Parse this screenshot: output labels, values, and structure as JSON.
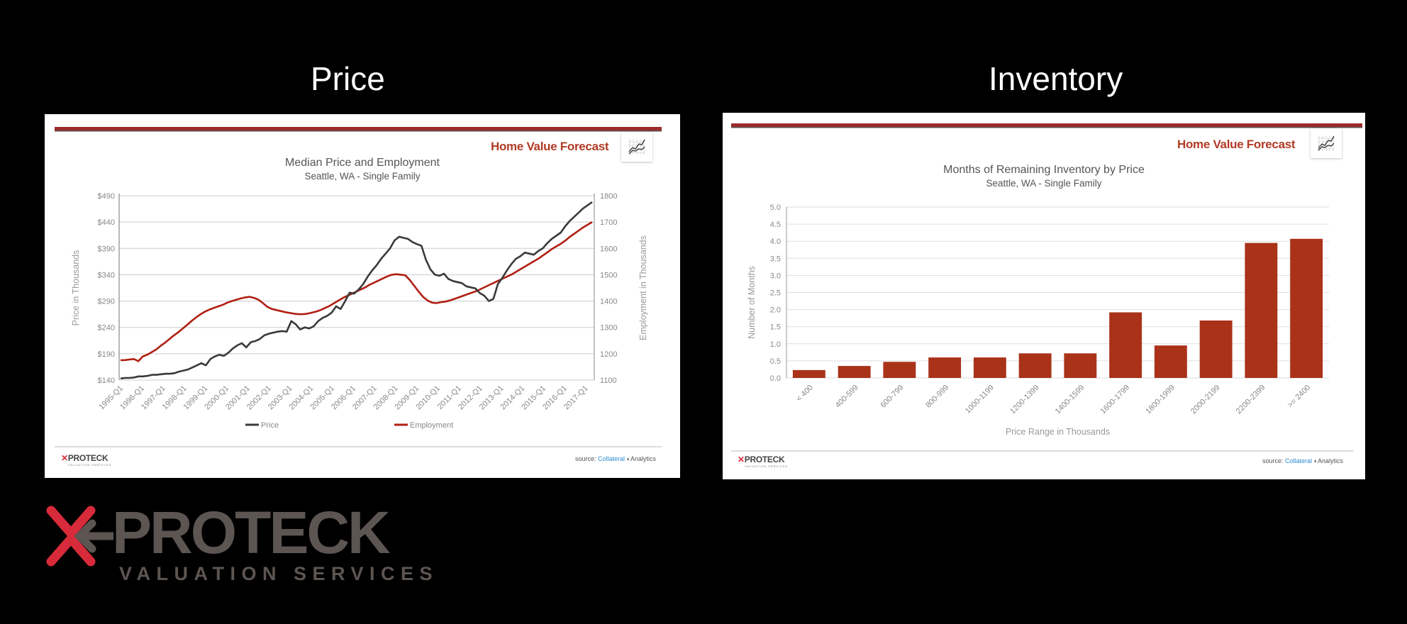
{
  "slide": {
    "left_title": "Price",
    "right_title": "Inventory"
  },
  "brand": {
    "forecast_label": "Home Value Forecast",
    "forecast_icon": "line-chart-icon",
    "source_prefix": "source:",
    "source_name_1": "Collateral",
    "source_name_2": "Analytics",
    "mini_logo": "PROTECK",
    "mini_logo_sub": "VALUATION SERVICES",
    "big_logo": "PROTECK",
    "big_logo_sub": "VALUATION SERVICES",
    "accent_color": "#b23a26",
    "logo_red": "#d72a3a",
    "logo_gray": "#5c5552"
  },
  "chart_data": [
    {
      "type": "line",
      "title": "Median Price and Employment",
      "subtitle": "Seattle, WA - Single Family",
      "xlabel": "",
      "ylabel": "Price in Thousands",
      "ylabel_right": "Employment in Thousands",
      "ylim": [
        140,
        490
      ],
      "ylim_right": [
        1100,
        1800
      ],
      "yticks": [
        "$140",
        "$190",
        "$240",
        "$290",
        "$340",
        "$390",
        "$440",
        "$490"
      ],
      "yticks_right": [
        "1100",
        "1200",
        "1300",
        "1400",
        "1500",
        "1600",
        "1700",
        "1800"
      ],
      "categories": [
        "1995-Q1",
        "1996-Q1",
        "1997-Q1",
        "1998-Q1",
        "1999-Q1",
        "2000-Q1",
        "2001-Q1",
        "2002-Q1",
        "2003-Q1",
        "2004-Q1",
        "2005-Q1",
        "2006-Q1",
        "2007-Q1",
        "2008-Q1",
        "2009-Q1",
        "2010-Q1",
        "2011-Q1",
        "2012-Q1",
        "2013-Q1",
        "2014-Q1",
        "2015-Q1",
        "2016-Q1",
        "2017-Q1"
      ],
      "grid": true,
      "legend_position": "bottom",
      "series": [
        {
          "name": "Price",
          "axis": "left",
          "color": "#3a3a3a",
          "values": [
            143,
            144,
            144,
            145,
            147,
            147,
            148,
            150,
            150,
            151,
            152,
            152,
            153,
            156,
            158,
            160,
            164,
            168,
            172,
            168,
            180,
            185,
            188,
            186,
            192,
            200,
            206,
            210,
            202,
            212,
            214,
            218,
            225,
            228,
            230,
            232,
            233,
            232,
            252,
            246,
            236,
            240,
            238,
            242,
            252,
            258,
            262,
            268,
            280,
            275,
            290,
            306,
            304,
            312,
            322,
            336,
            348,
            358,
            370,
            380,
            390,
            405,
            412,
            410,
            408,
            402,
            398,
            395,
            368,
            350,
            340,
            338,
            342,
            332,
            328,
            326,
            324,
            318,
            316,
            314,
            305,
            300,
            290,
            294,
            322,
            334,
            348,
            360,
            370,
            375,
            382,
            380,
            378,
            385,
            390,
            400,
            408,
            414,
            420,
            432,
            442,
            450,
            458,
            466,
            472,
            478
          ],
          "values_note": "quarterly 1995-Q1 to ~2017-Q3, approximate"
        },
        {
          "name": "Employment",
          "axis": "right",
          "color": "#b01e12",
          "values": [
            1175,
            1176,
            1178,
            1180,
            1172,
            1190,
            1196,
            1206,
            1216,
            1230,
            1242,
            1256,
            1270,
            1282,
            1296,
            1310,
            1325,
            1338,
            1350,
            1360,
            1368,
            1374,
            1380,
            1386,
            1394,
            1400,
            1405,
            1410,
            1414,
            1416,
            1412,
            1405,
            1392,
            1378,
            1370,
            1366,
            1362,
            1358,
            1355,
            1352,
            1350,
            1350,
            1352,
            1356,
            1360,
            1366,
            1374,
            1382,
            1392,
            1402,
            1412,
            1420,
            1428,
            1436,
            1444,
            1452,
            1462,
            1470,
            1478,
            1486,
            1494,
            1500,
            1502,
            1500,
            1498,
            1480,
            1458,
            1436,
            1416,
            1402,
            1394,
            1392,
            1396,
            1398,
            1402,
            1408,
            1414,
            1420,
            1426,
            1432,
            1438,
            1446,
            1454,
            1462,
            1470,
            1478,
            1486,
            1494,
            1502,
            1512,
            1522,
            1532,
            1542,
            1552,
            1562,
            1574,
            1586,
            1598,
            1608,
            1618,
            1630,
            1644,
            1656,
            1668,
            1680,
            1690,
            1700
          ],
          "values_note": "quarterly, approximate"
        }
      ]
    },
    {
      "type": "bar",
      "title": "Months of Remaining Inventory by Price",
      "subtitle": "Seattle, WA - Single Family",
      "xlabel": "Price Range in Thousands",
      "ylabel": "Number of Months",
      "ylim": [
        0,
        5
      ],
      "yticks": [
        "0.0",
        "0.5",
        "1.0",
        "1.5",
        "2.0",
        "2.5",
        "3.0",
        "3.5",
        "4.0",
        "4.5",
        "5.0"
      ],
      "grid": true,
      "color": "#a93219",
      "categories": [
        "< 400",
        "400-599",
        "600-799",
        "800-999",
        "1000-1199",
        "1200-1399",
        "1400-1599",
        "1600-1799",
        "1800-1999",
        "2000-2199",
        "2200-2399",
        ">= 2400"
      ],
      "values": [
        0.23,
        0.35,
        0.47,
        0.6,
        0.6,
        0.72,
        0.72,
        1.92,
        0.95,
        1.68,
        3.95,
        4.07
      ]
    }
  ]
}
